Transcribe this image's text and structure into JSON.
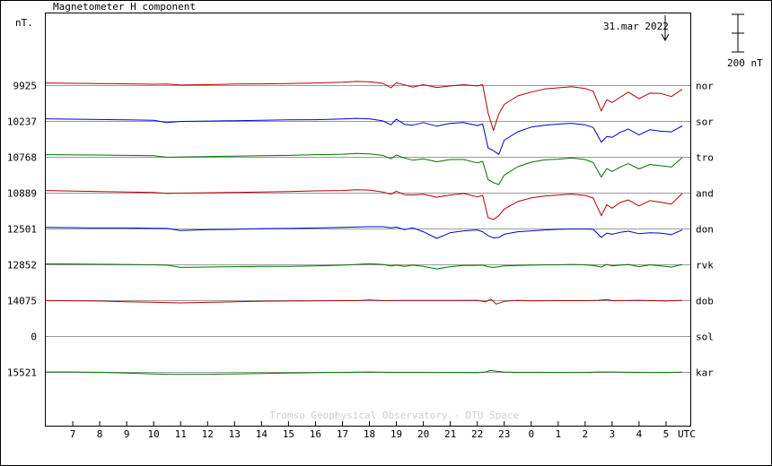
{
  "title": "Magnetometer H component",
  "unit_label": "nT.",
  "date_note": "31.mar 2022",
  "scale_bar_label": "200 nT",
  "credit": "Tromso Geophysical Observatory - DTU Space",
  "x_unit_label": "UTC",
  "colors": {
    "red": "#b00000",
    "blue": "#0000c8",
    "green": "#007000",
    "grid": "#999999",
    "frame": "#000000"
  },
  "chart_data": {
    "type": "line",
    "title": "Magnetometer H component",
    "xlabel": "UTC",
    "x_ticks": [
      "7",
      "8",
      "9",
      "10",
      "11",
      "12",
      "13",
      "14",
      "15",
      "16",
      "17",
      "18",
      "19",
      "20",
      "21",
      "22",
      "23",
      "0",
      "1",
      "2",
      "3",
      "4",
      "5"
    ],
    "x_range_hours": [
      6.0,
      29.9
    ],
    "y_scale_nT_for_bar": 200,
    "grid": true,
    "series": [
      {
        "name": "nor",
        "baseline": "9925",
        "color": "red",
        "x": [
          6,
          8,
          9,
          10,
          10.5,
          11,
          12,
          13,
          14,
          15,
          16,
          17,
          17.5,
          18,
          18.5,
          18.8,
          19,
          19.3,
          19.6,
          20,
          20.5,
          21,
          21.5,
          22,
          22.2,
          22.4,
          22.6,
          22.8,
          23,
          23.5,
          24,
          24.5,
          25,
          25.5,
          26,
          26.3,
          26.6,
          26.8,
          27,
          27.3,
          27.6,
          28,
          28.4,
          28.8,
          29.2,
          29.6
        ],
        "y": [
          14,
          11,
          9,
          7,
          8,
          3,
          5,
          8,
          9,
          11,
          14,
          18,
          22,
          20,
          12,
          -12,
          15,
          4,
          -8,
          5,
          -10,
          -2,
          5,
          -2,
          5,
          -145,
          -238,
          -150,
          -100,
          -55,
          -35,
          -18,
          -12,
          -6,
          -15,
          -30,
          -135,
          -75,
          -90,
          -62,
          -35,
          -70,
          -40,
          -42,
          -58,
          -20
        ]
      },
      {
        "name": "sor",
        "baseline": "10237",
        "color": "blue",
        "x": [
          6,
          8,
          9,
          10,
          10.5,
          11,
          12,
          13,
          14,
          15,
          16,
          17,
          17.5,
          18,
          18.5,
          18.8,
          19,
          19.3,
          19.6,
          20,
          20.5,
          21,
          21.5,
          22,
          22.2,
          22.4,
          22.6,
          22.8,
          23,
          23.5,
          24,
          24.5,
          25,
          25.5,
          26,
          26.3,
          26.6,
          26.8,
          27,
          27.3,
          27.6,
          28,
          28.4,
          28.8,
          29.2,
          29.6
        ],
        "y": [
          14,
          10,
          8,
          6,
          -6,
          0,
          2,
          4,
          6,
          8,
          9,
          13,
          16,
          14,
          3,
          -18,
          12,
          -15,
          -20,
          -6,
          -25,
          -10,
          -6,
          -22,
          -14,
          -140,
          -155,
          -175,
          -100,
          -55,
          -30,
          -20,
          -14,
          -10,
          -18,
          -32,
          -110,
          -80,
          -85,
          -58,
          -40,
          -72,
          -44,
          -52,
          -55,
          -24
        ]
      },
      {
        "name": "tro",
        "baseline": "10768",
        "color": "green",
        "x": [
          6,
          8,
          9,
          10,
          10.5,
          11,
          12,
          13,
          14,
          15,
          16,
          17,
          17.5,
          18,
          18.5,
          18.8,
          19,
          19.3,
          19.6,
          20,
          20.5,
          21,
          21.5,
          22,
          22.2,
          22.4,
          22.6,
          22.8,
          23,
          23.5,
          24,
          24.5,
          25,
          25.5,
          26,
          26.3,
          26.6,
          26.8,
          27,
          27.3,
          27.6,
          28,
          28.4,
          28.8,
          29.2,
          29.6
        ],
        "y": [
          14,
          12,
          10,
          8,
          0,
          2,
          4,
          6,
          8,
          10,
          14,
          16,
          20,
          18,
          10,
          -8,
          12,
          -4,
          -15,
          -8,
          -24,
          -12,
          -12,
          -30,
          -22,
          -118,
          -135,
          -145,
          -95,
          -50,
          -26,
          -14,
          -10,
          -4,
          -12,
          -28,
          -105,
          -60,
          -75,
          -52,
          -34,
          -62,
          -38,
          -45,
          -52,
          -2
        ]
      },
      {
        "name": "and",
        "baseline": "10889",
        "color": "red",
        "x": [
          6,
          8,
          9,
          10,
          10.5,
          11,
          12,
          13,
          14,
          15,
          16,
          17,
          17.5,
          18,
          18.5,
          18.8,
          19,
          19.3,
          19.6,
          20,
          20.5,
          21,
          21.5,
          22,
          22.2,
          22.4,
          22.6,
          22.8,
          23,
          23.5,
          24,
          24.5,
          25,
          25.5,
          26,
          26.3,
          26.6,
          26.8,
          27,
          27.3,
          27.6,
          28,
          28.4,
          28.8,
          29.2,
          29.6
        ],
        "y": [
          14,
          8,
          6,
          4,
          -2,
          0,
          2,
          4,
          6,
          8,
          12,
          14,
          18,
          16,
          6,
          -6,
          10,
          -8,
          -10,
          -6,
          -22,
          -10,
          -2,
          -20,
          -12,
          -130,
          -140,
          -120,
          -85,
          -45,
          -25,
          -15,
          -10,
          -5,
          -12,
          -26,
          -120,
          -62,
          -80,
          -50,
          -36,
          -68,
          -40,
          -48,
          -58,
          -2
        ]
      },
      {
        "name": "don",
        "baseline": "12501",
        "color": "blue",
        "x": [
          6,
          8,
          9,
          10,
          10.5,
          11,
          12,
          13,
          14,
          15,
          16,
          17,
          17.5,
          18,
          18.5,
          18.8,
          19,
          19.3,
          19.6,
          20,
          20.5,
          21,
          21.5,
          22,
          22.2,
          22.4,
          22.6,
          22.8,
          23,
          23.5,
          24,
          24.5,
          25,
          25.5,
          26,
          26.3,
          26.6,
          26.8,
          27,
          27.3,
          27.6,
          28,
          28.4,
          28.8,
          29.2,
          29.6
        ],
        "y": [
          8,
          5,
          5,
          4,
          3,
          -8,
          -4,
          -2,
          2,
          3,
          5,
          8,
          10,
          12,
          12,
          6,
          10,
          -4,
          6,
          -15,
          -50,
          -20,
          -10,
          -5,
          -15,
          -35,
          -48,
          -45,
          -28,
          -15,
          -10,
          -5,
          -2,
          0,
          0,
          -2,
          -45,
          -22,
          -28,
          -18,
          -12,
          -25,
          -20,
          -22,
          -30,
          -5
        ]
      },
      {
        "name": "rvk",
        "baseline": "12852",
        "color": "green",
        "x": [
          6,
          8,
          9,
          10,
          10.5,
          11,
          12,
          13,
          14,
          15,
          16,
          17,
          17.5,
          18,
          18.5,
          18.8,
          19,
          19.3,
          19.6,
          20,
          20.5,
          21,
          21.5,
          22,
          22.2,
          22.4,
          22.6,
          22.8,
          23,
          23.5,
          24,
          24.5,
          25,
          25.5,
          26,
          26.3,
          26.6,
          26.8,
          27,
          27.3,
          27.6,
          28,
          28.4,
          28.8,
          29.2,
          29.6
        ],
        "y": [
          5,
          3,
          2,
          0,
          -2,
          -14,
          -12,
          -10,
          -8,
          -8,
          -6,
          -2,
          2,
          6,
          2,
          -6,
          -2,
          -8,
          -2,
          -8,
          -22,
          -10,
          -4,
          -3,
          -2,
          -10,
          -14,
          -10,
          -6,
          -4,
          -2,
          0,
          0,
          2,
          0,
          -4,
          -12,
          2,
          -6,
          -2,
          2,
          -10,
          0,
          -6,
          -12,
          2
        ]
      },
      {
        "name": "dob",
        "baseline": "14075",
        "color": "red",
        "x": [
          6,
          8,
          9,
          10,
          10.5,
          11,
          12,
          13,
          14,
          15,
          16,
          17,
          17.5,
          18,
          18.5,
          19,
          20,
          21,
          22,
          22.3,
          22.5,
          22.7,
          23,
          23.5,
          24,
          25,
          26,
          26.5,
          26.8,
          27,
          28,
          29,
          29.6
        ],
        "y": [
          0,
          -2,
          -6,
          -8,
          -10,
          -12,
          -9,
          -6,
          -3,
          -2,
          -1,
          0,
          0,
          4,
          0,
          1,
          1,
          1,
          2,
          -6,
          8,
          -18,
          -4,
          2,
          -1,
          0,
          0,
          2,
          6,
          0,
          2,
          -2,
          2
        ]
      },
      {
        "name": "sol",
        "baseline": "0",
        "color": "green",
        "x": [],
        "y": []
      },
      {
        "name": "kar",
        "baseline": "15521",
        "color": "green",
        "x": [
          6,
          7,
          8,
          9,
          10,
          10.5,
          11,
          12,
          13,
          14,
          15,
          16,
          17,
          18,
          19,
          20,
          21,
          22,
          22.3,
          22.5,
          22.7,
          23,
          23.5,
          24,
          25,
          26,
          26.5,
          27,
          28,
          29,
          29.6
        ],
        "y": [
          2,
          2,
          0,
          -4,
          -8,
          -10,
          -11,
          -10,
          -8,
          -6,
          -4,
          -2,
          0,
          2,
          0,
          0,
          -1,
          -2,
          2,
          10,
          6,
          2,
          0,
          0,
          -1,
          0,
          2,
          2,
          0,
          -1,
          1
        ]
      }
    ]
  }
}
